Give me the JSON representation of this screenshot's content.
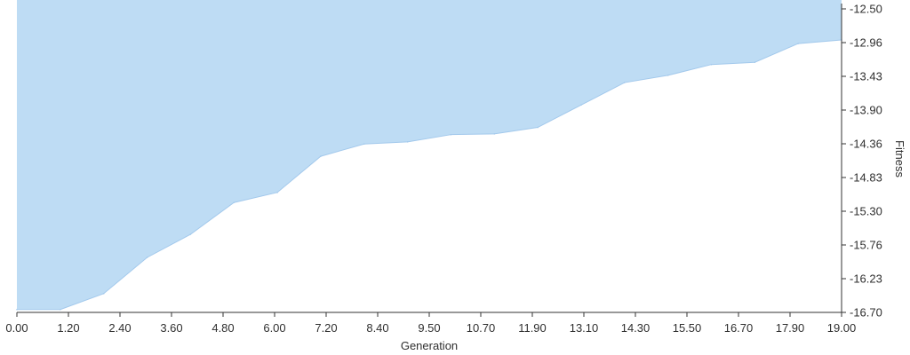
{
  "chart_data": {
    "type": "area",
    "xlabel": "Generation",
    "ylabel": "Fitness",
    "xlim": [
      0,
      19
    ],
    "ylim": [
      -16.7,
      -12.5
    ],
    "x_ticks": [
      "0.00",
      "1.20",
      "2.40",
      "3.60",
      "4.80",
      "6.00",
      "7.20",
      "8.40",
      "9.50",
      "10.70",
      "11.90",
      "13.10",
      "14.30",
      "15.50",
      "16.70",
      "17.90",
      "19.00"
    ],
    "y_ticks": [
      "-12.50",
      "-12.96",
      "-13.43",
      "-13.90",
      "-14.36",
      "-14.83",
      "-15.30",
      "-15.76",
      "-16.23",
      "-16.70"
    ],
    "grid": false,
    "colors": {
      "fill": "#bedcf4",
      "stroke": "#a3c9ec",
      "axis": "#333333"
    },
    "x": [
      0,
      1,
      2,
      3,
      4,
      5,
      6,
      7,
      8,
      9,
      10,
      11,
      12,
      13,
      14,
      15,
      16,
      17,
      18,
      19
    ],
    "y": [
      -16.66,
      -16.66,
      -16.44,
      -15.94,
      -15.62,
      -15.18,
      -15.04,
      -14.54,
      -14.37,
      -14.34,
      -14.24,
      -14.23,
      -14.14,
      -13.83,
      -13.52,
      -13.42,
      -13.27,
      -13.24,
      -12.98,
      -12.93
    ]
  }
}
